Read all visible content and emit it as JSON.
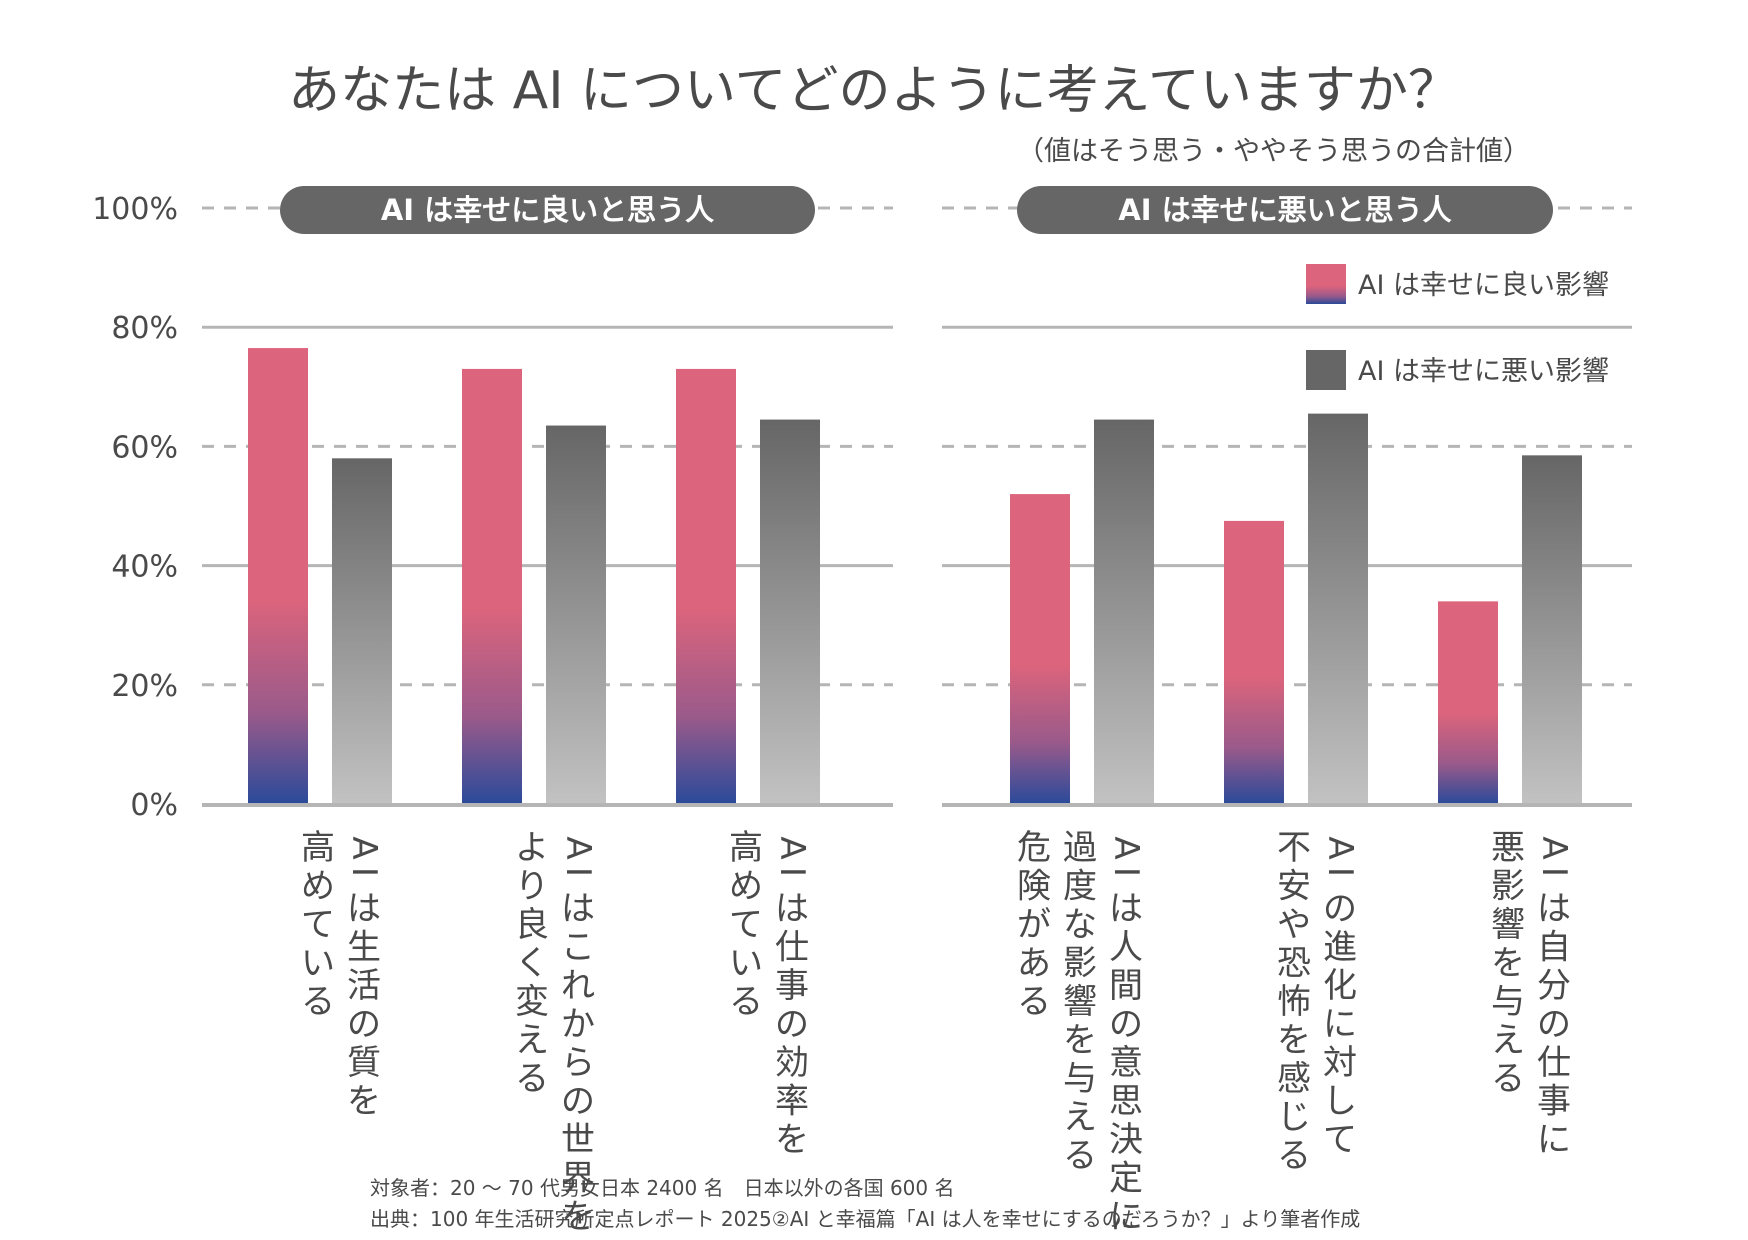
{
  "chart_data": {
    "type": "bar",
    "title": "あなたは AI についてどのように考えていますか？",
    "subtitle": "（値はそう思う・ややそう思うの合計値）",
    "ylim": [
      0,
      100
    ],
    "yticks": [
      "0%",
      "20%",
      "40%",
      "60%",
      "80%",
      "100%"
    ],
    "legend": {
      "position": "top-right",
      "items": [
        {
          "label": "AI は幸せに良い影響",
          "color": "#dc647c"
        },
        {
          "label": "AI は幸せに悪い影響",
          "color": "#666666"
        }
      ]
    },
    "panels": [
      {
        "heading": "AI は幸せに良いと思う人",
        "categories": [
          {
            "lines": [
              "AI は生活の質を",
              "高めている"
            ],
            "good": 76.5,
            "bad": 58
          },
          {
            "lines": [
              "AI はこれからの世界を",
              "より良く変える"
            ],
            "good": 73,
            "bad": 63.5
          },
          {
            "lines": [
              "AI は仕事の効率を",
              "高めている"
            ],
            "good": 73,
            "bad": 64.5
          }
        ]
      },
      {
        "heading": "AI は幸せに悪いと思う人",
        "categories": [
          {
            "lines": [
              "AI は人間の意思決定に",
              "過度な影響を与える",
              "危険がある"
            ],
            "good": 52,
            "bad": 64.5
          },
          {
            "lines": [
              "AI の進化に対して",
              "不安や恐怖を感じる"
            ],
            "good": 47.5,
            "bad": 65.5
          },
          {
            "lines": [
              "AI は自分の仕事に",
              "悪影響を与える"
            ],
            "good": 34,
            "bad": 58.5
          }
        ]
      }
    ],
    "colors": {
      "good_top": "#dc647c",
      "good_bottom": "#2a4a9a",
      "bad_top": "#666666",
      "bad_bottom": "#c2c2c2",
      "pill": "#666666",
      "axis": "#b5b5b5"
    }
  },
  "notes": [
    "対象者：20 ～ 70 代男女日本 2400 名　日本以外の各国 600 名",
    "出典：100 年生活研究所定点レポート 2025②AI と幸福篇「AI は人を幸せにするのだろうか？」より筆者作成"
  ]
}
